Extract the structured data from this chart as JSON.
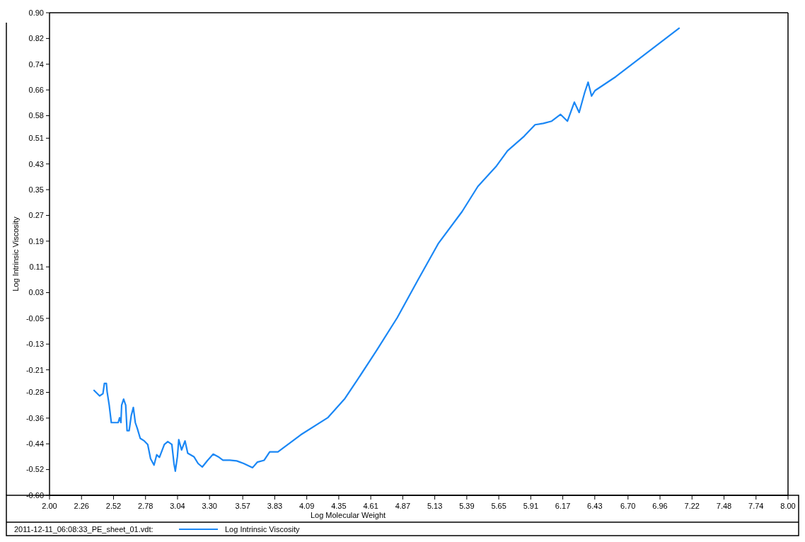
{
  "chart_data": {
    "type": "line",
    "xlabel": "Log Molecular Weight",
    "ylabel": "Log Intrinsic Viscosity",
    "legend_title": "2011-12-11_06:08:33_PE_sheet_01.vdt:",
    "legend": "bottom",
    "grid": false,
    "marker": "none",
    "line_style": "solid",
    "xlim": [
      2,
      8
    ],
    "xticks": [
      {
        "value": 2,
        "label": "2.00"
      },
      2.26,
      2.52,
      2.78,
      3.04,
      {
        "value": 3.3,
        "label": "3.30"
      },
      3.57,
      3.83,
      4.09,
      4.35,
      4.61,
      4.87,
      5.13,
      5.39,
      5.65,
      5.91,
      6.17,
      6.43,
      {
        "value": 6.7,
        "label": "6.70"
      },
      6.96,
      7.22,
      7.48,
      7.74,
      {
        "value": 8,
        "label": "8.00"
      }
    ],
    "ylim": [
      -0.6,
      0.9
    ],
    "yticks": [
      {
        "value": -0.6,
        "label": "-0.60"
      },
      -0.52,
      -0.44,
      -0.36,
      -0.28,
      -0.21,
      -0.13,
      -0.05,
      0.03,
      0.11,
      0.19,
      0.27,
      0.35,
      0.43,
      0.51,
      0.58,
      0.66,
      0.74,
      0.82,
      {
        "value": 0.9,
        "label": "0.90"
      }
    ],
    "x": [
      2.362,
      2.407,
      2.434,
      2.446,
      2.462,
      2.468,
      2.485,
      2.502,
      2.558,
      2.569,
      2.58,
      2.586,
      2.602,
      2.619,
      2.63,
      2.647,
      2.664,
      2.681,
      2.697,
      2.714,
      2.737,
      2.77,
      2.798,
      2.821,
      2.849,
      2.871,
      2.893,
      2.933,
      2.961,
      2.994,
      3.011,
      3.022,
      3.039,
      3.05,
      3.073,
      3.101,
      3.123,
      3.173,
      3.207,
      3.241,
      3.285,
      3.33,
      3.37,
      3.409,
      3.465,
      3.521,
      3.577,
      3.65,
      3.688,
      3.744,
      3.789,
      3.856,
      4.041,
      4.26,
      4.4,
      4.5,
      4.657,
      4.825,
      4.993,
      5.161,
      5.352,
      5.48,
      5.632,
      5.721,
      5.856,
      5.945,
      6.012,
      6.08,
      6.152,
      6.208,
      6.264,
      6.303,
      6.348,
      6.376,
      6.404,
      6.432,
      6.6,
      7.115
    ],
    "series": [
      {
        "name": "Log Intrinsic Viscosity",
        "color": "#1a87f5",
        "values": [
          -0.274,
          -0.291,
          -0.284,
          -0.252,
          -0.252,
          -0.278,
          -0.32,
          -0.374,
          -0.374,
          -0.359,
          -0.374,
          -0.32,
          -0.301,
          -0.32,
          -0.399,
          -0.399,
          -0.352,
          -0.327,
          -0.374,
          -0.393,
          -0.423,
          -0.431,
          -0.442,
          -0.486,
          -0.506,
          -0.474,
          -0.482,
          -0.442,
          -0.433,
          -0.442,
          -0.501,
          -0.525,
          -0.48,
          -0.427,
          -0.459,
          -0.431,
          -0.469,
          -0.48,
          -0.501,
          -0.512,
          -0.491,
          -0.472,
          -0.48,
          -0.491,
          -0.491,
          -0.493,
          -0.501,
          -0.514,
          -0.497,
          -0.491,
          -0.465,
          -0.465,
          -0.412,
          -0.359,
          -0.299,
          -0.242,
          -0.15,
          -0.048,
          0.069,
          0.184,
          0.282,
          0.36,
          0.424,
          0.471,
          0.516,
          0.552,
          0.556,
          0.563,
          0.584,
          0.563,
          0.622,
          0.59,
          0.652,
          0.684,
          0.641,
          0.658,
          0.701,
          0.852
        ]
      }
    ]
  }
}
